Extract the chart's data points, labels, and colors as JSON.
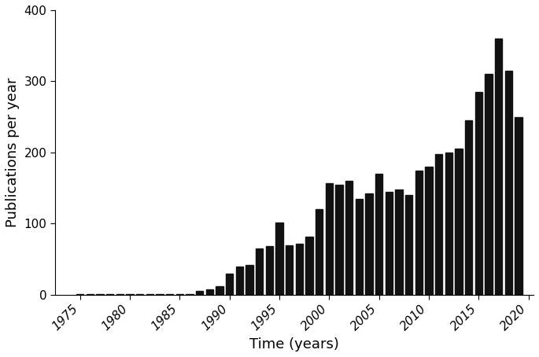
{
  "years": [
    1975,
    1976,
    1977,
    1978,
    1979,
    1980,
    1981,
    1982,
    1983,
    1984,
    1985,
    1986,
    1987,
    1988,
    1989,
    1990,
    1991,
    1992,
    1993,
    1994,
    1995,
    1996,
    1997,
    1998,
    1999,
    2000,
    2001,
    2002,
    2003,
    2004,
    2005,
    2006,
    2007,
    2008,
    2009,
    2010,
    2011,
    2012,
    2013,
    2014,
    2015,
    2016,
    2017,
    2018,
    2019
  ],
  "values": [
    1,
    1,
    1,
    1,
    1,
    1,
    1,
    1,
    1,
    1,
    1,
    1,
    5,
    8,
    12,
    30,
    40,
    42,
    65,
    68,
    102,
    70,
    72,
    82,
    120,
    157,
    155,
    160,
    135,
    143,
    170,
    145,
    148,
    140,
    175,
    180,
    198,
    200,
    205,
    245,
    285,
    310,
    360,
    315,
    250
  ],
  "bar_color": "#111111",
  "xlabel": "Time (years)",
  "ylabel": "Publications per year",
  "xlim": [
    1972.5,
    2020.5
  ],
  "ylim": [
    0,
    400
  ],
  "yticks": [
    0,
    100,
    200,
    300,
    400
  ],
  "xticks": [
    1975,
    1980,
    1985,
    1990,
    1995,
    2000,
    2005,
    2010,
    2015,
    2020
  ],
  "bar_width": 0.75,
  "xlabel_fontsize": 13,
  "ylabel_fontsize": 13,
  "tick_fontsize": 11
}
